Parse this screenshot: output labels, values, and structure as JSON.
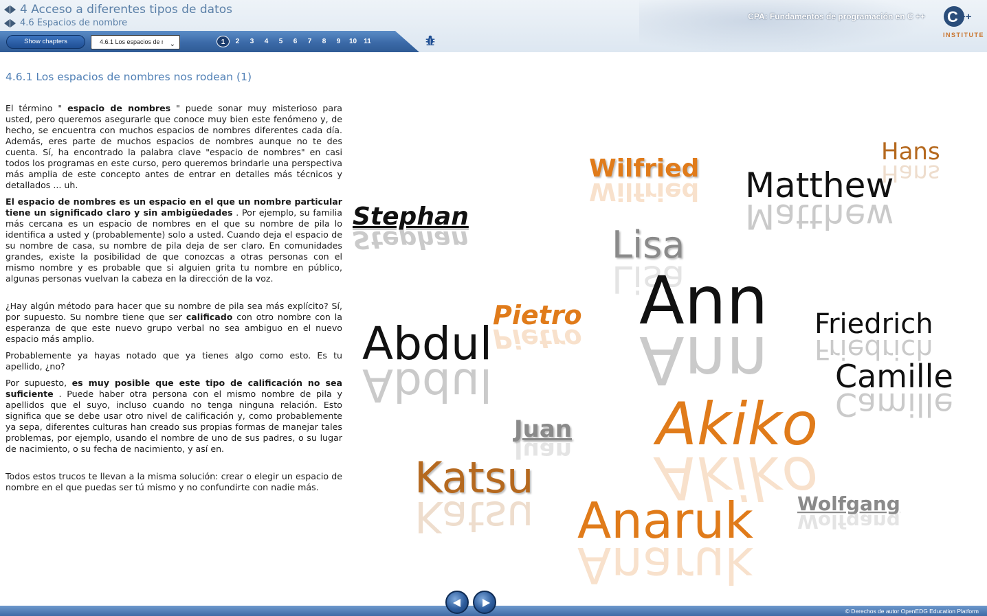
{
  "header": {
    "chapter_title": "4 Acceso a diferentes tipos de datos",
    "section_title": "4.6 Espacios de nombre",
    "course_title": "CPA: Fundamentos de programación en C ++",
    "logo_text": "INSTITUTE",
    "logo_symbol": "C",
    "logo_plus": "++"
  },
  "toolbar": {
    "show_chapters_label": "Show chapters",
    "section_select_value": "4.6.1 Los espacios de nombres nos rodean (1)",
    "pages": [
      "1",
      "2",
      "3",
      "4",
      "5",
      "6",
      "7",
      "8",
      "9",
      "10",
      "11"
    ],
    "active_page": "1",
    "bug_icon": "bug-icon"
  },
  "content": {
    "title": "4.6.1 Los espacios de nombres nos rodean (1)",
    "p1": {
      "a": "El término \" ",
      "b": "espacio de nombres",
      "c": " \" puede sonar muy misterioso para usted, pero queremos asegurarle que conoce muy bien este fenómeno y, de hecho, se encuentra con muchos espacios de nombres diferentes cada día. Además, eres parte de muchos espacios de nombres aunque no te des cuenta. Sí, ha encontrado la palabra clave \"espacio de nombres\" en casi todos los programas en este curso, pero queremos brindarle una perspectiva más amplia de este concepto antes de entrar en detalles más técnicos y detallados ... uh."
    },
    "p2": {
      "a": "El espacio de nombres es un espacio en el que un nombre particular tiene un significado claro y sin ambigüedades",
      "b": " . Por ejemplo, su familia más cercana es un espacio de nombres en el que su nombre de pila lo identifica a usted y (probablemente) solo a usted. Cuando deja el espacio de su nombre de casa, su nombre de pila deja de ser claro. En comunidades grandes, existe la posibilidad de que conozcas a otras personas con el mismo nombre y es probable que si alguien grita tu nombre en público, algunas personas vuelvan la cabeza en la dirección de la voz."
    },
    "p3": {
      "a": "¿Hay algún método para hacer que su nombre de pila sea más explícito? Sí, por supuesto. Su nombre tiene que ser ",
      "b": "calificado",
      "c": " con otro nombre con la esperanza de que este nuevo grupo verbal no sea ambiguo en el nuevo espacio más amplio."
    },
    "p4": "Probablemente ya hayas notado que ya tienes algo como esto. Es tu apellido, ¿no?",
    "p5": {
      "a": "Por supuesto, ",
      "b": "es muy posible que este tipo de calificación no sea suficiente",
      "c": " . Puede haber otra persona con el mismo nombre de pila y apellidos que el suyo, incluso cuando no tenga ninguna relación. Esto significa que se debe usar otro nivel de calificación y, como probablemente ya sepa, diferentes culturas han creado sus propias formas de manejar tales problemas, por ejemplo, usando el nombre de uno de sus padres, o su lugar de nacimiento, o su fecha de nacimiento, y así en."
    },
    "p6": "Todos estos trucos te llevan a la misma solución: crear o elegir un espacio de nombre en el que puedas ser tú mismo y no confundirte con nadie más."
  },
  "name_cloud": {
    "colors": {
      "orange": "#e07b1a",
      "black": "#111111",
      "gray": "#8a8a8a",
      "brown": "#b5691f"
    },
    "names": [
      "Stephan",
      "Wilfried",
      "Hans",
      "Matthew",
      "Lisa",
      "Ann",
      "Pietro",
      "Abdul",
      "Friedrich",
      "Camille",
      "Juan",
      "Akiko",
      "Katsu",
      "Wolfgang",
      "Anaruk"
    ]
  },
  "footer": {
    "copyright": "© Derechos de autor OpenEDG Education Platform",
    "prev_label": "previous-page",
    "next_label": "next-page"
  }
}
